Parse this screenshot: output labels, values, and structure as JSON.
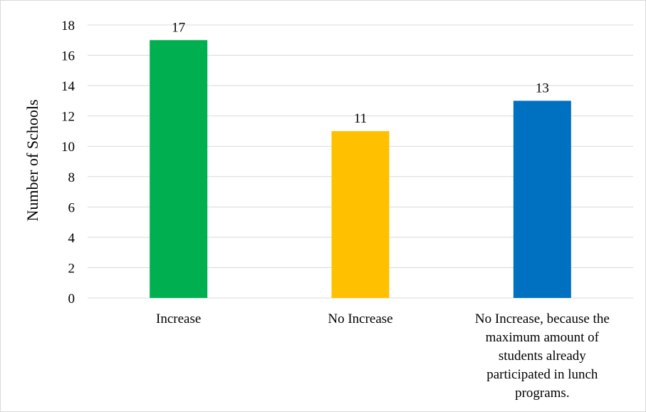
{
  "chart_data": {
    "type": "bar",
    "title": "",
    "xlabel": "",
    "ylabel": "Number of Schools",
    "categories": [
      [
        "Increase"
      ],
      [
        "No Increase"
      ],
      [
        "No Increase, because the",
        "maximum amount of",
        "students already",
        "participated in lunch",
        "programs."
      ]
    ],
    "values": [
      17,
      11,
      13
    ],
    "colors": [
      "#00b050",
      "#ffc000",
      "#0070c0"
    ],
    "ylim": [
      0,
      18
    ],
    "yticks": [
      0,
      2,
      4,
      6,
      8,
      10,
      12,
      14,
      16,
      18
    ],
    "grid": true,
    "legend": "none"
  }
}
